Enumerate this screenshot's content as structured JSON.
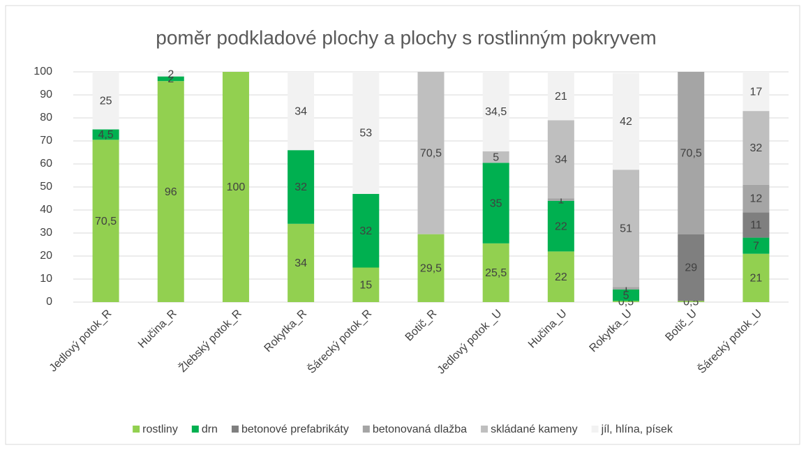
{
  "chart_data": {
    "type": "stacked_bar",
    "title": "poměr podkladové plochy a plochy s rostlinným pokryvem",
    "categories": [
      "Jedlový potok_R",
      "Hučina_R",
      "Žlebský potok_R",
      "Rokytka_R",
      "Šárecký potok_R",
      "Botič_R",
      "Jedlový potok _U",
      "Hučina_U",
      "Rokytka_U",
      "Botič_U",
      "Šárecký potok_U"
    ],
    "series": [
      {
        "name": "rostliny",
        "color": "#92d050",
        "values": [
          70.5,
          96,
          100,
          34,
          15,
          29.5,
          25.5,
          22,
          0.5,
          0.5,
          21
        ],
        "value_labels": [
          "70,5",
          null,
          null,
          null,
          null,
          "29,5",
          "25,5",
          null,
          "0,5",
          "0,5",
          null
        ]
      },
      {
        "name": "drn",
        "color": "#00b050",
        "values": [
          4.5,
          2,
          null,
          32,
          32,
          null,
          35,
          22,
          5,
          null,
          7
        ],
        "value_labels": [
          "4,5",
          null,
          null,
          null,
          null,
          null,
          null,
          null,
          null,
          null,
          null
        ]
      },
      {
        "name": "betonové prefabrikáty",
        "color": "#7f7f7f",
        "values": [
          null,
          null,
          null,
          null,
          null,
          null,
          null,
          null,
          null,
          29,
          11
        ]
      },
      {
        "name": "betonovaná dlažba",
        "color": "#a5a5a5",
        "values": [
          null,
          null,
          null,
          null,
          null,
          null,
          null,
          1,
          1,
          70.5,
          12
        ],
        "value_labels": [
          null,
          null,
          null,
          null,
          null,
          null,
          null,
          null,
          null,
          "70,5",
          null
        ]
      },
      {
        "name": "skládané kameny",
        "color": "#bfbfbf",
        "values": [
          null,
          null,
          null,
          null,
          null,
          70.5,
          5,
          34,
          51,
          null,
          32
        ],
        "value_labels": [
          null,
          null,
          null,
          null,
          null,
          "70,5",
          null,
          null,
          null,
          null,
          null
        ]
      },
      {
        "name": "jíl, hlína, písek",
        "color": "#f2f2f2",
        "values": [
          25,
          2,
          null,
          34,
          53,
          null,
          34.5,
          21,
          42,
          null,
          17
        ],
        "value_labels": [
          null,
          null,
          null,
          null,
          null,
          null,
          "34,5",
          null,
          null,
          null,
          null
        ]
      }
    ],
    "ylim": [
      0,
      100
    ],
    "yticks": [
      0,
      10,
      20,
      30,
      40,
      50,
      60,
      70,
      80,
      90,
      100
    ],
    "grid": true,
    "legend": "bottom"
  }
}
